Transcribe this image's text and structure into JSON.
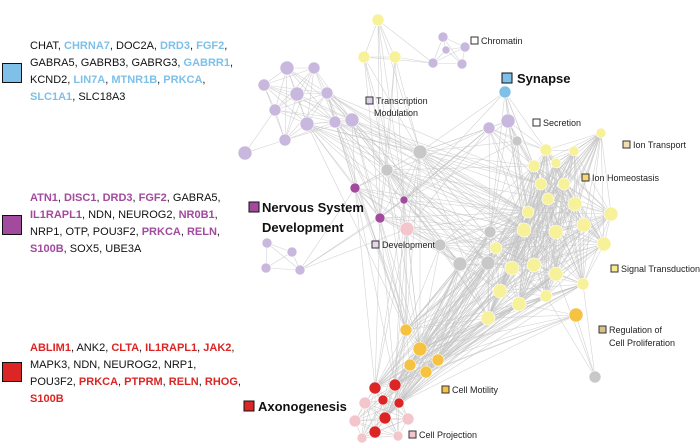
{
  "gene_lists": [
    {
      "id": "synapse",
      "color": "#7ec0e8",
      "genes": [
        {
          "t": "CHAT",
          "hl": false
        },
        {
          "t": "CHRNA7",
          "hl": true
        },
        {
          "t": "DOC2A",
          "hl": false
        },
        {
          "t": "DRD3",
          "hl": true
        },
        {
          "t": "FGF2",
          "hl": true
        },
        {
          "t": "GABRA5",
          "hl": false
        },
        {
          "t": "GABRB3",
          "hl": false
        },
        {
          "t": "GABRG3",
          "hl": false
        },
        {
          "t": "GABRR1",
          "hl": true
        },
        {
          "t": "KCND2",
          "hl": false
        },
        {
          "t": "LIN7A",
          "hl": true
        },
        {
          "t": "MTNR1B",
          "hl": true
        },
        {
          "t": "PRKCA",
          "hl": true
        },
        {
          "t": "SLC1A1",
          "hl": true
        },
        {
          "t": "SLC18A3",
          "hl": false
        }
      ]
    },
    {
      "id": "nervous",
      "color": "#a24a9e",
      "genes": [
        {
          "t": "ATN1",
          "hl": true
        },
        {
          "t": "DISC1",
          "hl": true
        },
        {
          "t": "DRD3",
          "hl": true
        },
        {
          "t": "FGF2",
          "hl": true
        },
        {
          "t": "GABRA5",
          "hl": false
        },
        {
          "t": "IL1RAPL1",
          "hl": true
        },
        {
          "t": "NDN",
          "hl": false
        },
        {
          "t": "NEUROG2",
          "hl": false
        },
        {
          "t": "NR0B1",
          "hl": true
        },
        {
          "t": "NRP1",
          "hl": false
        },
        {
          "t": "OTP",
          "hl": false
        },
        {
          "t": "POU3F2",
          "hl": false
        },
        {
          "t": "PRKCA",
          "hl": true
        },
        {
          "t": "RELN",
          "hl": true
        },
        {
          "t": "S100B",
          "hl": true
        },
        {
          "t": "SOX5",
          "hl": false
        },
        {
          "t": "UBE3A",
          "hl": false
        }
      ]
    },
    {
      "id": "axon",
      "color": "#dc2525",
      "genes": [
        {
          "t": "ABLIM1",
          "hl": true
        },
        {
          "t": "ANK2",
          "hl": false
        },
        {
          "t": "CLTA",
          "hl": true
        },
        {
          "t": "IL1RAPL1",
          "hl": true
        },
        {
          "t": "JAK2",
          "hl": true
        },
        {
          "t": "MAPK3",
          "hl": false
        },
        {
          "t": "NDN",
          "hl": false
        },
        {
          "t": "NEUROG2",
          "hl": false
        },
        {
          "t": "NRP1",
          "hl": false
        },
        {
          "t": "POU3F2",
          "hl": false
        },
        {
          "t": "PRKCA",
          "hl": true
        },
        {
          "t": "PTPRM",
          "hl": true
        },
        {
          "t": "RELN",
          "hl": true
        },
        {
          "t": "RHOG",
          "hl": true
        },
        {
          "t": "S100B",
          "hl": true
        }
      ]
    }
  ],
  "big_labels": {
    "synapse": "Synapse",
    "nervous_line1": "Nervous System",
    "nervous_line2": "Development",
    "axon": "Axonogenesis"
  },
  "small_labels": {
    "chromatin": "Chromatin",
    "transcription1": "Transcription",
    "transcription2": "Modulation",
    "secretion": "Secretion",
    "ion_transport": "Ion Transport",
    "ion_homeostasis": "Ion Homeostasis",
    "development": "Development",
    "signal_transduction": "Signal Transduction",
    "regulation1": "Regulation of",
    "regulation2": "Cell Proliferation",
    "cell_motility": "Cell Motility",
    "cell_projection": "Cell Projection"
  },
  "colors": {
    "synapse": "#7ec0e8",
    "nervous": "#a24a9e",
    "axon": "#dc2525",
    "lavender": "#c9b8dd",
    "yellow": "#f7f29a",
    "orange": "#f5c242",
    "pink": "#f3c6cc",
    "grey": "#c8c8c8",
    "edge": "#c4c4c4"
  }
}
